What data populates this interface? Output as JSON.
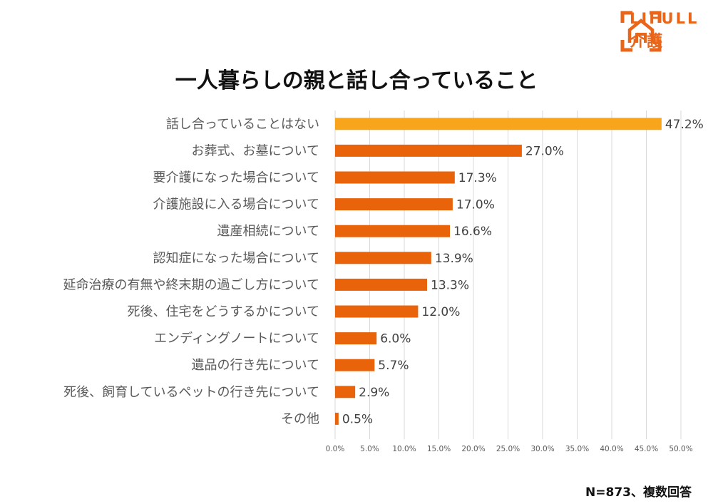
{
  "logo": {
    "brand": "LIFULL",
    "sub": "介護",
    "icon": "house-icon"
  },
  "title": "一人暮らしの親と話し合っていること",
  "note": "N=873、複数回答",
  "colors": {
    "highlight": "#f8a51b",
    "bar": "#e8630a",
    "brand": "#e8651a",
    "grid": "#d9d9d9"
  },
  "chart_data": {
    "type": "bar",
    "orientation": "horizontal",
    "categories": [
      "話し合っていることはない",
      "お葬式、お墓について",
      "要介護になった場合について",
      "介護施設に入る場合について",
      "遺産相続について",
      "認知症になった場合について",
      "延命治療の有無や終末期の過ごし方について",
      "死後、住宅をどうするかについて",
      "エンディングノートについて",
      "遺品の行き先について",
      "死後、飼育しているペットの行き先について",
      "その他"
    ],
    "values": [
      47.2,
      27.0,
      17.3,
      17.0,
      16.6,
      13.9,
      13.3,
      12.0,
      6.0,
      5.7,
      2.9,
      0.5
    ],
    "value_labels": [
      "47.2%",
      "27.0%",
      "17.3%",
      "17.0%",
      "16.6%",
      "13.9%",
      "13.3%",
      "12.0%",
      "6.0%",
      "5.7%",
      "2.9%",
      "0.5%"
    ],
    "xlim": [
      0,
      50
    ],
    "ticks": [
      "0.0%",
      "5.0%",
      "10.0%",
      "15.0%",
      "20.0%",
      "25.0%",
      "30.0%",
      "35.0%",
      "40.0%",
      "45.0%",
      "50.0%"
    ],
    "grid": true,
    "highlight_index": 0
  }
}
